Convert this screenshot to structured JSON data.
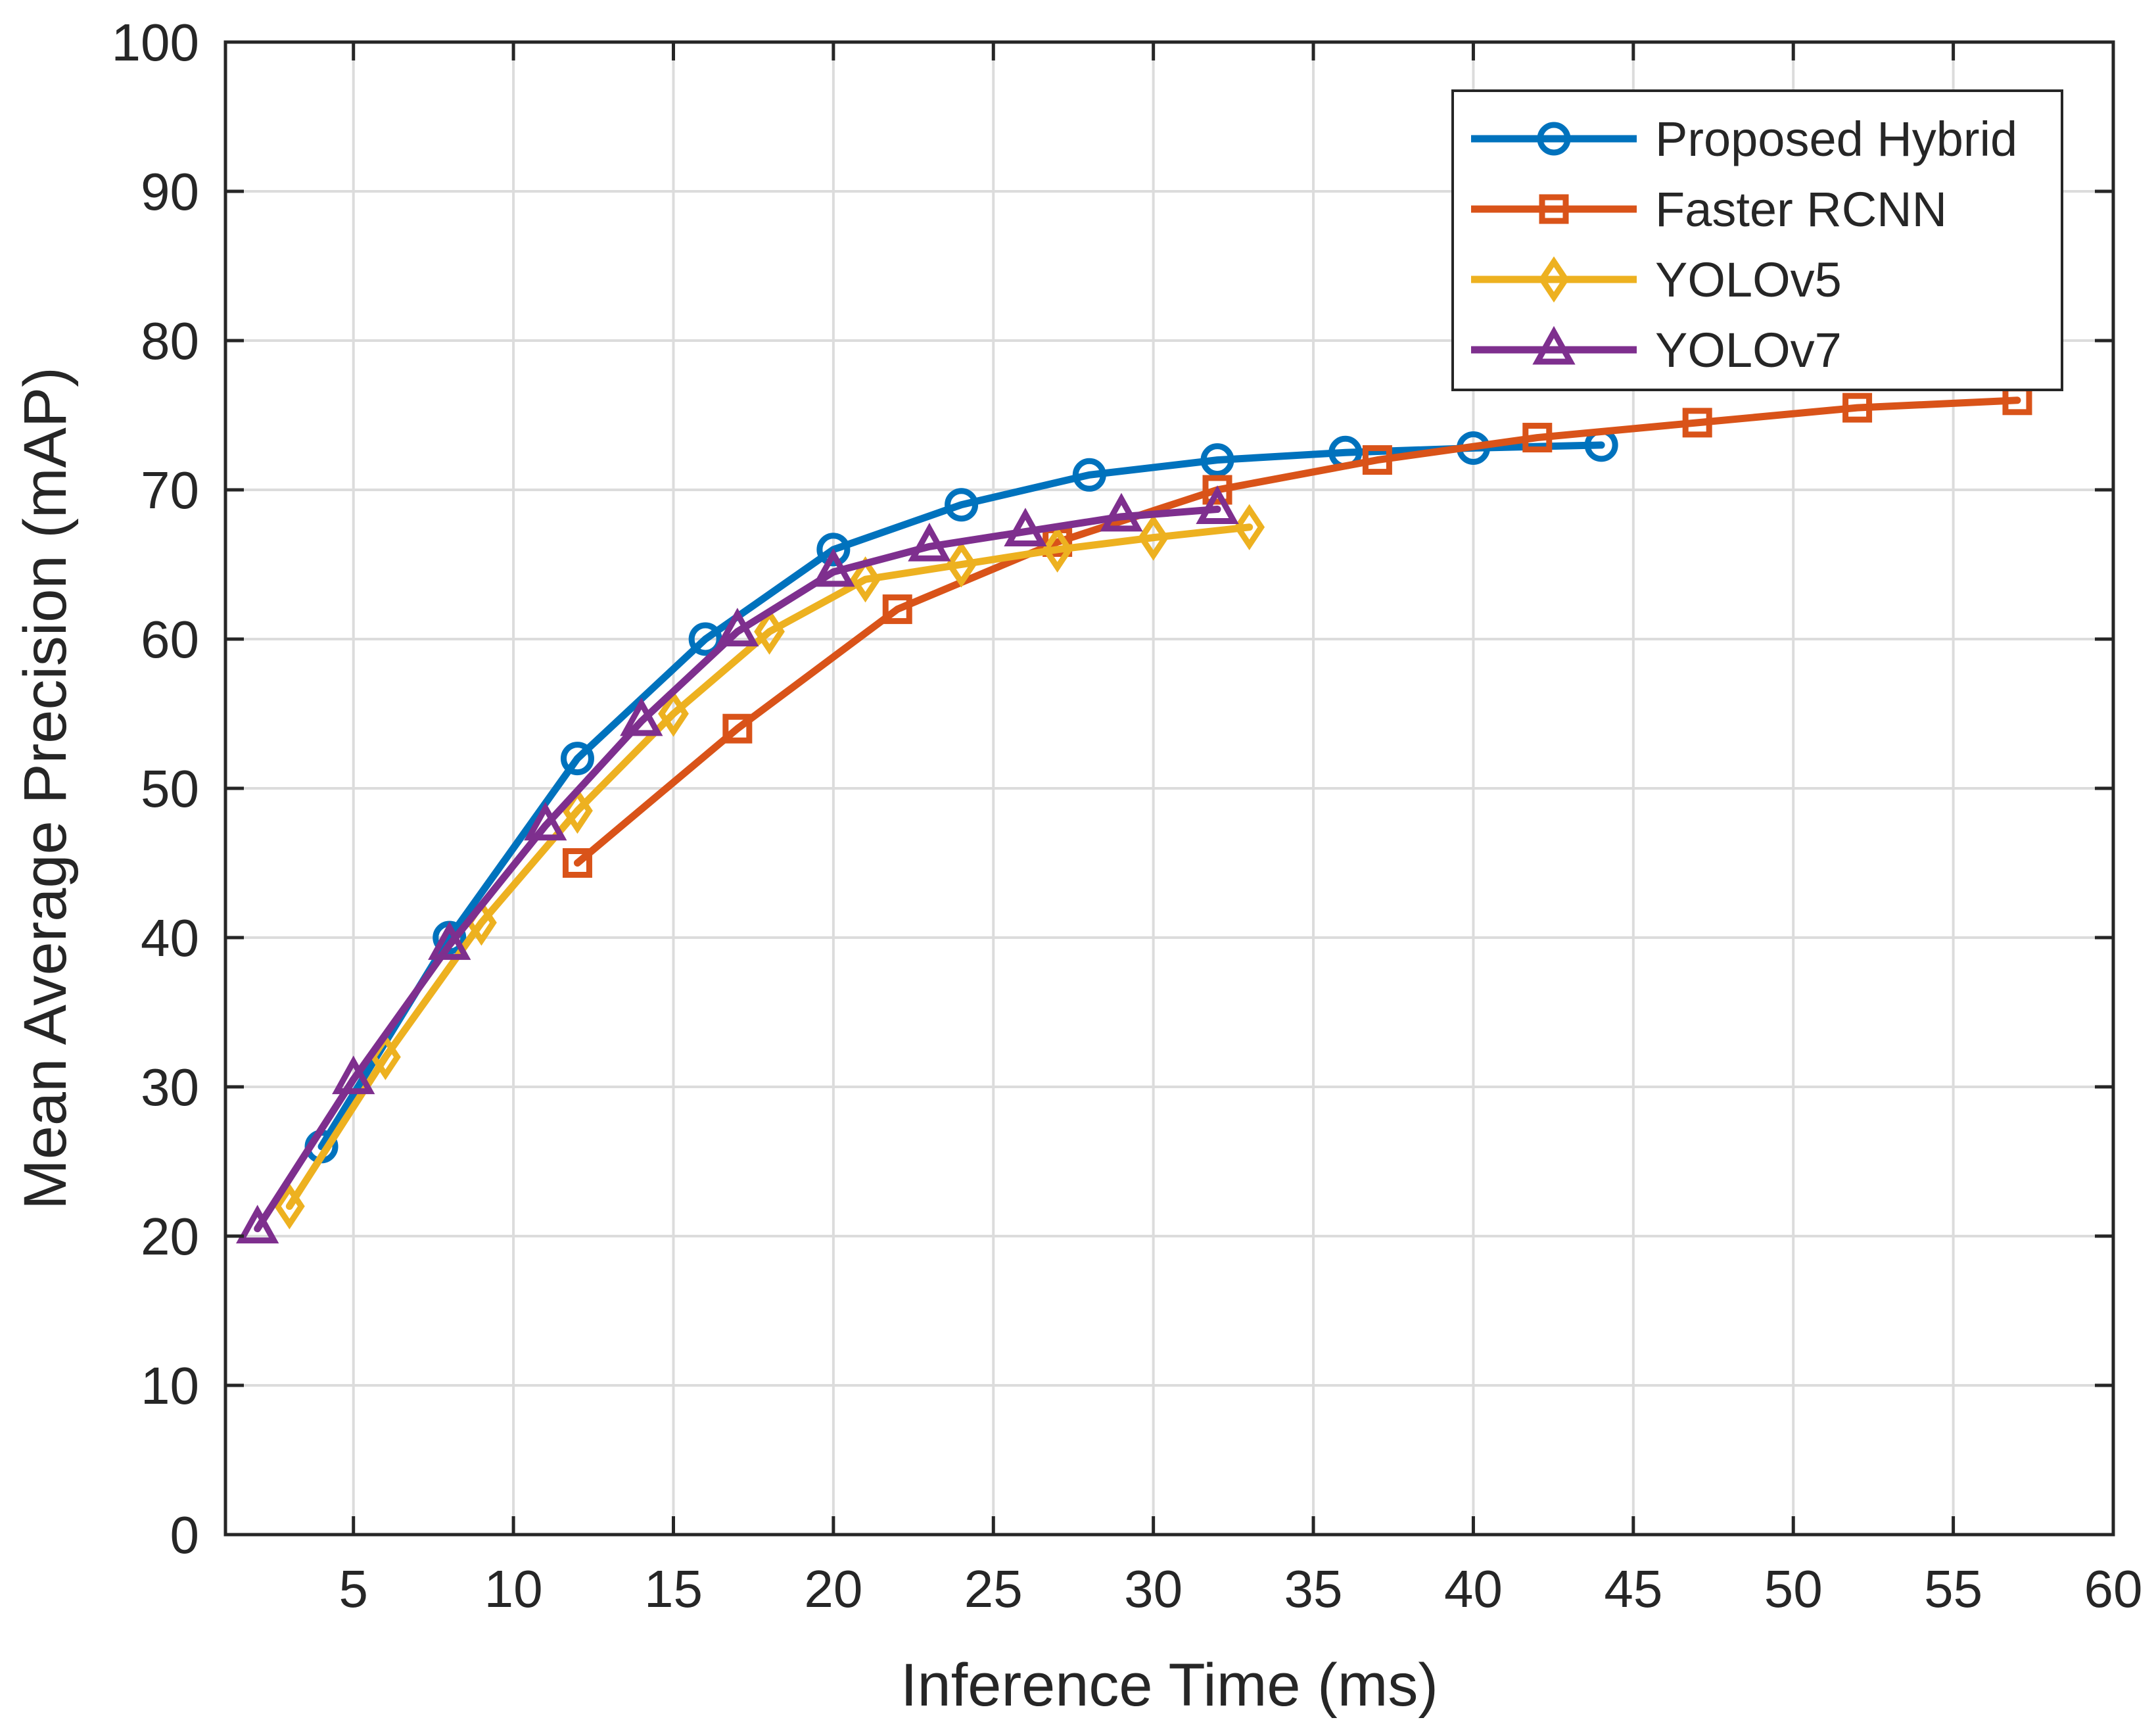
{
  "chart_data": {
    "type": "line",
    "title": "",
    "xlabel": "Inference Time (ms)",
    "ylabel": "Mean Average Precision (mAP)",
    "xlim": [
      1,
      60
    ],
    "ylim": [
      0,
      100
    ],
    "xticks": [
      5,
      10,
      15,
      20,
      25,
      30,
      35,
      40,
      45,
      50,
      55,
      60
    ],
    "yticks": [
      0,
      10,
      20,
      30,
      40,
      50,
      60,
      70,
      80,
      90,
      100
    ],
    "grid": true,
    "legend_position": "top-right",
    "series": [
      {
        "name": "Proposed Hybrid",
        "color": "#0072BD",
        "marker": "circle",
        "x": [
          4,
          8,
          12,
          16,
          20,
          24,
          28,
          32,
          36,
          40,
          44
        ],
        "y": [
          26,
          40,
          52,
          60,
          66,
          69,
          71,
          72,
          72.5,
          72.8,
          73
        ]
      },
      {
        "name": "Faster RCNN",
        "color": "#D95319",
        "marker": "square",
        "x": [
          12,
          17,
          22,
          27,
          32,
          37,
          42,
          47,
          52,
          57
        ],
        "y": [
          45,
          54,
          62,
          66.5,
          70,
          72,
          73.5,
          74.5,
          75.5,
          76
        ]
      },
      {
        "name": "YOLOv5",
        "color": "#EDB120",
        "marker": "diamond",
        "x": [
          3,
          6,
          9,
          12,
          15,
          18,
          21,
          24,
          27,
          30,
          33
        ],
        "y": [
          22,
          32,
          41,
          48.5,
          55,
          60.5,
          64,
          65,
          66,
          66.8,
          67.5
        ]
      },
      {
        "name": "YOLOv7",
        "color": "#7E2F8E",
        "marker": "triangle",
        "x": [
          2,
          5,
          8,
          11,
          14,
          17,
          20,
          23,
          26,
          29,
          32
        ],
        "y": [
          20.5,
          30.5,
          39.5,
          47.5,
          54.5,
          60.5,
          64.5,
          66.2,
          67.2,
          68.2,
          68.7
        ]
      }
    ]
  }
}
